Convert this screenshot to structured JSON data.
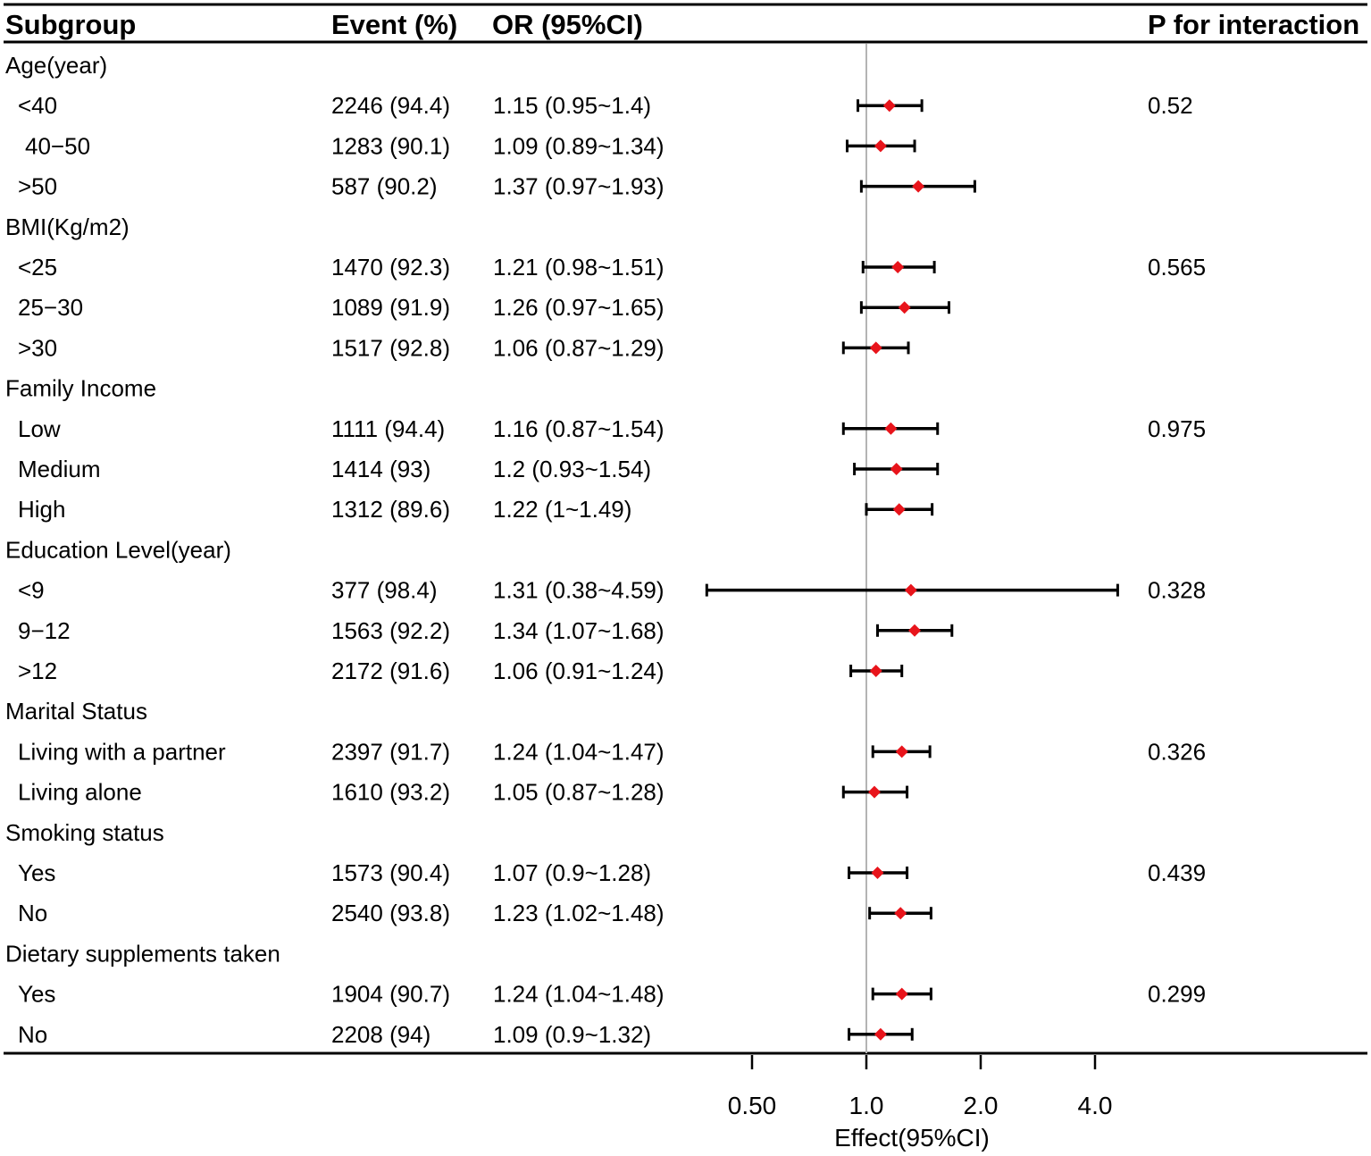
{
  "chart_data": {
    "type": "forest",
    "x_scale": "log2",
    "reference_line": 1.0,
    "xlim": [
      0.27,
      6.2
    ],
    "colors": {
      "point": "#e8141b",
      "ci": "#000000",
      "reference": "#b4b4b4",
      "rule": "#000000"
    },
    "headers": {
      "subgroup": "Subgroup",
      "event": "Event (%)",
      "or": "OR (95%CI)",
      "p": "P for interaction"
    },
    "rows": [
      {
        "kind": "group",
        "label": "Age(year)"
      },
      {
        "kind": "item",
        "label": "<40",
        "event": "2246 (94.4)",
        "or_text": "1.15 (0.95~1.4)",
        "or": 1.15,
        "lo": 0.95,
        "hi": 1.4,
        "p": "0.52"
      },
      {
        "kind": "item",
        "label": "40−50",
        "event": "1283 (90.1)",
        "or_text": "1.09 (0.89~1.34)",
        "or": 1.09,
        "lo": 0.89,
        "hi": 1.34,
        "p": ""
      },
      {
        "kind": "item",
        "label": ">50",
        "event": "587 (90.2)",
        "or_text": "1.37 (0.97~1.93)",
        "or": 1.37,
        "lo": 0.97,
        "hi": 1.93,
        "p": ""
      },
      {
        "kind": "group",
        "label": "BMI(Kg/m2)"
      },
      {
        "kind": "item",
        "label": "<25",
        "event": "1470 (92.3)",
        "or_text": "1.21 (0.98~1.51)",
        "or": 1.21,
        "lo": 0.98,
        "hi": 1.51,
        "p": "0.565"
      },
      {
        "kind": "item",
        "label": "25−30",
        "event": "1089 (91.9)",
        "or_text": "1.26 (0.97~1.65)",
        "or": 1.26,
        "lo": 0.97,
        "hi": 1.65,
        "p": ""
      },
      {
        "kind": "item",
        "label": ">30",
        "event": "1517 (92.8)",
        "or_text": "1.06 (0.87~1.29)",
        "or": 1.06,
        "lo": 0.87,
        "hi": 1.29,
        "p": ""
      },
      {
        "kind": "group",
        "label": "Family Income"
      },
      {
        "kind": "item",
        "label": "Low",
        "event": "1111 (94.4)",
        "or_text": "1.16 (0.87~1.54)",
        "or": 1.16,
        "lo": 0.87,
        "hi": 1.54,
        "p": "0.975"
      },
      {
        "kind": "item",
        "label": "Medium",
        "event": "1414 (93)",
        "or_text": "1.2 (0.93~1.54)",
        "or": 1.2,
        "lo": 0.93,
        "hi": 1.54,
        "p": ""
      },
      {
        "kind": "item",
        "label": "High",
        "event": "1312 (89.6)",
        "or_text": "1.22 (1~1.49)",
        "or": 1.22,
        "lo": 1.0,
        "hi": 1.49,
        "p": ""
      },
      {
        "kind": "group",
        "label": "Education Level(year)"
      },
      {
        "kind": "item",
        "label": "<9",
        "event": "377 (98.4)",
        "or_text": "1.31 (0.38~4.59)",
        "or": 1.31,
        "lo": 0.38,
        "hi": 4.59,
        "p": "0.328"
      },
      {
        "kind": "item",
        "label": "9−12",
        "event": "1563 (92.2)",
        "or_text": "1.34 (1.07~1.68)",
        "or": 1.34,
        "lo": 1.07,
        "hi": 1.68,
        "p": ""
      },
      {
        "kind": "item",
        "label": ">12",
        "event": "2172 (91.6)",
        "or_text": "1.06 (0.91~1.24)",
        "or": 1.06,
        "lo": 0.91,
        "hi": 1.24,
        "p": ""
      },
      {
        "kind": "group",
        "label": "Marital Status"
      },
      {
        "kind": "item",
        "label": "Living with a partner",
        "event": "2397 (91.7)",
        "or_text": "1.24 (1.04~1.47)",
        "or": 1.24,
        "lo": 1.04,
        "hi": 1.47,
        "p": "0.326"
      },
      {
        "kind": "item",
        "label": "Living alone",
        "event": "1610 (93.2)",
        "or_text": "1.05 (0.87~1.28)",
        "or": 1.05,
        "lo": 0.87,
        "hi": 1.28,
        "p": ""
      },
      {
        "kind": "group",
        "label": "Smoking status"
      },
      {
        "kind": "item",
        "label": "Yes",
        "event": "1573 (90.4)",
        "or_text": "1.07 (0.9~1.28)",
        "or": 1.07,
        "lo": 0.9,
        "hi": 1.28,
        "p": "0.439"
      },
      {
        "kind": "item",
        "label": "No",
        "event": "2540 (93.8)",
        "or_text": "1.23 (1.02~1.48)",
        "or": 1.23,
        "lo": 1.02,
        "hi": 1.48,
        "p": ""
      },
      {
        "kind": "group",
        "label": "Dietary supplements taken"
      },
      {
        "kind": "item",
        "label": "Yes",
        "event": "1904 (90.7)",
        "or_text": "1.24 (1.04~1.48)",
        "or": 1.24,
        "lo": 1.04,
        "hi": 1.48,
        "p": "0.299"
      },
      {
        "kind": "item",
        "label": "No",
        "event": "2208 (94)",
        "or_text": "1.09 (0.9~1.32)",
        "or": 1.09,
        "lo": 0.9,
        "hi": 1.32,
        "p": ""
      }
    ],
    "x_ticks": [
      {
        "value": 0.5,
        "label": "0.50"
      },
      {
        "value": 1.0,
        "label": "1.0"
      },
      {
        "value": 2.0,
        "label": "2.0"
      },
      {
        "value": 4.0,
        "label": "4.0"
      }
    ],
    "xlabel": "Effect(95%CI)"
  }
}
